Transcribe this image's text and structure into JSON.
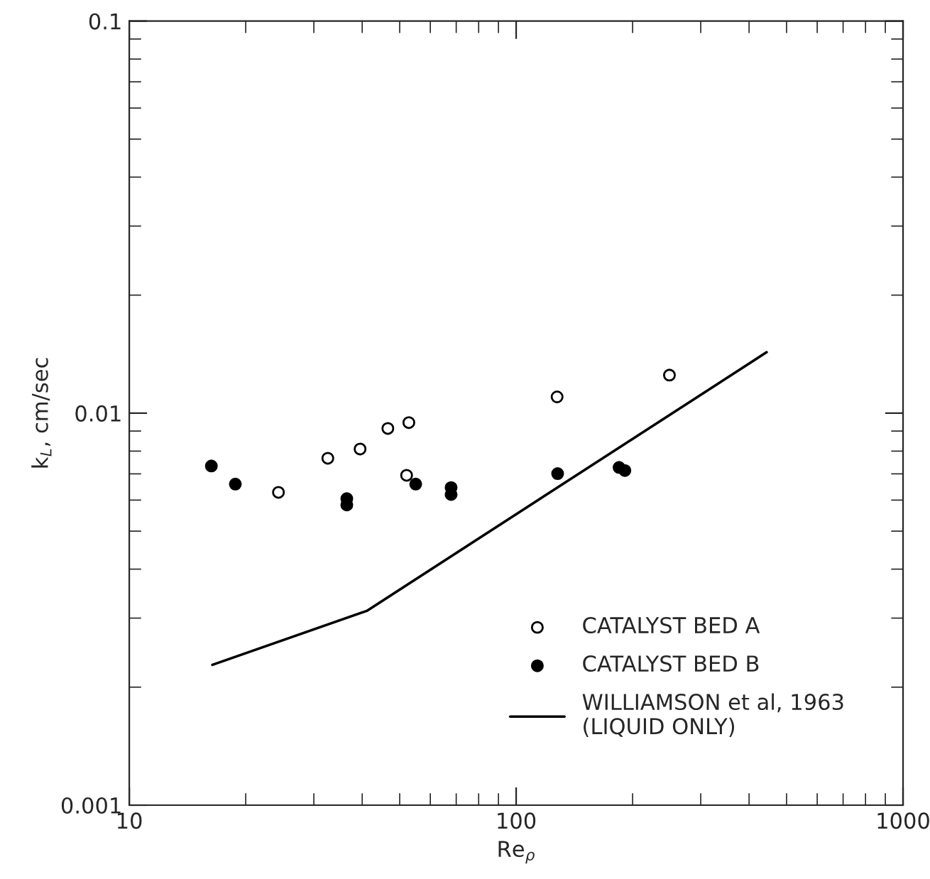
{
  "chart_data": {
    "type": "scatter",
    "xlabel": "Re$_{ρ}$",
    "ylabel": "k$_{L}$, cm/sec",
    "log": "xy",
    "xlim": [
      10,
      1000
    ],
    "xticks": [
      10,
      100,
      1000
    ],
    "ylim": [
      0.001,
      0.1
    ],
    "yticks": [
      0.001,
      0.01,
      0.1
    ],
    "grid": false,
    "legend": "bottom right",
    "series": [
      {
        "name": "CATALYST BED A",
        "marker": "circle",
        "color": "#ffffff",
        "x": [
          24.3,
          32.6,
          39.5,
          46.6,
          52.8,
          52.1,
          127.6,
          249
        ],
        "values": [
          0.00628,
          0.00767,
          0.0081,
          0.00914,
          0.00946,
          0.00694,
          0.011,
          0.0125
        ]
      },
      {
        "name": "CATALYST BED B",
        "marker": "circle",
        "color": "#000000",
        "x": [
          16.3,
          18.8,
          36.5,
          36.5,
          55.0,
          67.9,
          67.9,
          128,
          184.5,
          191
        ],
        "values": [
          0.00733,
          0.00659,
          0.00605,
          0.00583,
          0.00659,
          0.00646,
          0.0062,
          0.00701,
          0.00727,
          0.00714
        ]
      },
      {
        "name": "WILLIAMSON et al, 1963\n(LIQUID ONLY)",
        "type": "line",
        "marker": "none",
        "line_style": "solid",
        "color": "#000000",
        "x": [
          16.4,
          41.1,
          444
        ],
        "values": [
          0.00228,
          0.00313,
          0.0143
        ]
      }
    ]
  }
}
